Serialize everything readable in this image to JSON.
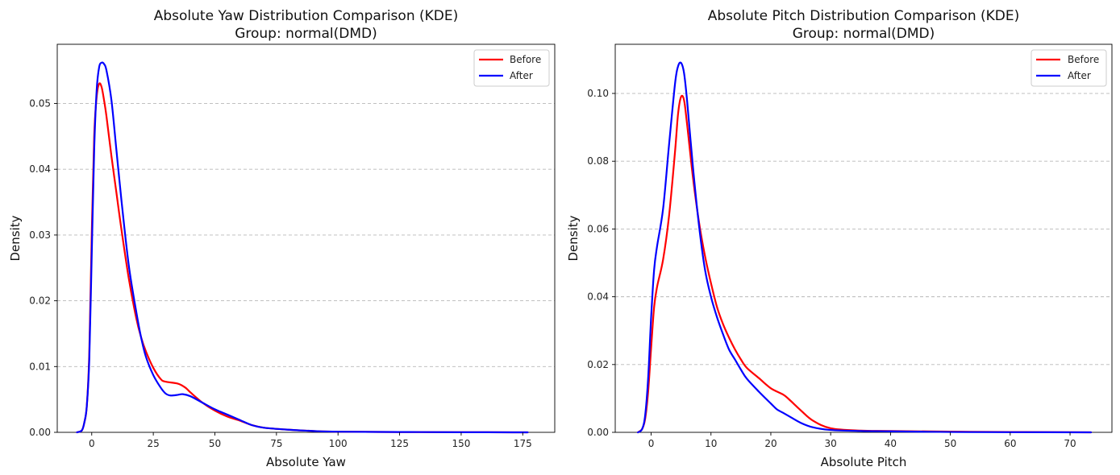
{
  "chart_data": [
    {
      "type": "line",
      "title": "Absolute Yaw Distribution Comparison (KDE)",
      "subtitle": "Group: normal(DMD)",
      "xlabel": "Absolute Yaw",
      "ylabel": "Density",
      "xlim": [
        -14,
        188
      ],
      "ylim": [
        0,
        0.059
      ],
      "xticks": [
        0,
        25,
        50,
        75,
        100,
        125,
        150,
        175
      ],
      "xtick_labels": [
        "0",
        "25",
        "50",
        "75",
        "100",
        "125",
        "150",
        "175"
      ],
      "yticks": [
        0,
        0.01,
        0.02,
        0.03,
        0.04,
        0.05
      ],
      "ytick_labels": [
        "0.00",
        "0.01",
        "0.02",
        "0.03",
        "0.04",
        "0.05"
      ],
      "grid": "y-dashed",
      "legend": "top-right",
      "series": [
        {
          "name": "Before",
          "color": "#ff0000",
          "x": [
            -6,
            -4,
            -3,
            -2,
            -1,
            0,
            1,
            2,
            3,
            4,
            5,
            6,
            8,
            10,
            12,
            15,
            18,
            20,
            22,
            25,
            28,
            30,
            35,
            38,
            40,
            45,
            50,
            55,
            60,
            65,
            70,
            80,
            90,
            100,
            125,
            150,
            177
          ],
          "y": [
            0,
            0.0003,
            0.0015,
            0.004,
            0.012,
            0.03,
            0.045,
            0.051,
            0.053,
            0.0525,
            0.0505,
            0.048,
            0.042,
            0.0365,
            0.031,
            0.0235,
            0.0175,
            0.0145,
            0.0123,
            0.0098,
            0.0081,
            0.0077,
            0.0074,
            0.0068,
            0.0061,
            0.0045,
            0.0033,
            0.0024,
            0.0018,
            0.0011,
            0.0007,
            0.0004,
            0.0002,
            0.0001,
            5e-05,
            2e-05,
            0
          ]
        },
        {
          "name": "After",
          "color": "#0000ff",
          "x": [
            -6,
            -4,
            -3,
            -2,
            -1,
            0,
            1,
            2,
            3,
            4,
            5,
            6,
            8,
            10,
            12,
            15,
            18,
            20,
            22,
            25,
            28,
            30,
            32,
            35,
            37,
            40,
            45,
            50,
            55,
            60,
            65,
            70,
            80,
            90,
            100,
            125,
            150,
            177
          ],
          "y": [
            0,
            0.0003,
            0.0015,
            0.004,
            0.011,
            0.027,
            0.043,
            0.052,
            0.0555,
            0.0562,
            0.056,
            0.055,
            0.0505,
            0.043,
            0.0355,
            0.0255,
            0.0185,
            0.0145,
            0.0115,
            0.0087,
            0.0068,
            0.0059,
            0.0056,
            0.0057,
            0.0058,
            0.0055,
            0.0045,
            0.0035,
            0.0027,
            0.0019,
            0.0011,
            0.0007,
            0.0004,
            0.0002,
            0.0001,
            5e-05,
            2e-05,
            0
          ]
        }
      ]
    },
    {
      "type": "line",
      "title": "Absolute Pitch Distribution Comparison (KDE)",
      "subtitle": "Group: normal(DMD)",
      "xlabel": "Absolute Pitch",
      "ylabel": "Density",
      "xlim": [
        -6,
        77
      ],
      "ylim": [
        0,
        0.1145
      ],
      "xticks": [
        0,
        10,
        20,
        30,
        40,
        50,
        60,
        70
      ],
      "xtick_labels": [
        "0",
        "10",
        "20",
        "30",
        "40",
        "50",
        "60",
        "70"
      ],
      "yticks": [
        0,
        0.02,
        0.04,
        0.06,
        0.08,
        0.1
      ],
      "ytick_labels": [
        "0.00",
        "0.02",
        "0.04",
        "0.06",
        "0.08",
        "0.10"
      ],
      "grid": "y-dashed",
      "legend": "top-right",
      "series": [
        {
          "name": "Before",
          "color": "#ff0000",
          "x": [
            -2.2,
            -1.5,
            -1,
            -0.5,
            0,
            0.5,
            1,
            2,
            3,
            4,
            4.5,
            5,
            5.5,
            6,
            7,
            8,
            9,
            10,
            11,
            12,
            13,
            14,
            15,
            16,
            18,
            20,
            22,
            23,
            25,
            27,
            30,
            35,
            40,
            50,
            60,
            73.5
          ],
          "y": [
            0,
            0.001,
            0.004,
            0.012,
            0.025,
            0.037,
            0.043,
            0.051,
            0.064,
            0.083,
            0.094,
            0.099,
            0.098,
            0.091,
            0.075,
            0.062,
            0.052,
            0.044,
            0.037,
            0.032,
            0.028,
            0.0245,
            0.0215,
            0.019,
            0.016,
            0.013,
            0.0112,
            0.0098,
            0.0065,
            0.0035,
            0.0012,
            0.0005,
            0.0004,
            0.0002,
            0.0001,
            0
          ]
        },
        {
          "name": "After",
          "color": "#0000ff",
          "x": [
            -2.2,
            -1.5,
            -1,
            -0.5,
            0,
            0.5,
            1,
            2,
            3,
            4,
            4.5,
            5,
            5.5,
            6,
            7,
            8,
            9,
            10,
            11,
            12,
            13,
            14,
            15,
            16,
            18,
            20,
            21,
            22,
            23,
            25,
            27,
            30,
            35,
            40,
            50,
            60,
            73.5
          ],
          "y": [
            0,
            0.001,
            0.005,
            0.016,
            0.034,
            0.048,
            0.055,
            0.066,
            0.085,
            0.103,
            0.108,
            0.109,
            0.106,
            0.098,
            0.078,
            0.061,
            0.048,
            0.04,
            0.034,
            0.029,
            0.0245,
            0.0215,
            0.0185,
            0.0158,
            0.012,
            0.0085,
            0.0068,
            0.0058,
            0.0048,
            0.0028,
            0.0015,
            0.0007,
            0.0004,
            0.0003,
            0.0001,
            5e-05,
            0
          ]
        }
      ]
    }
  ]
}
